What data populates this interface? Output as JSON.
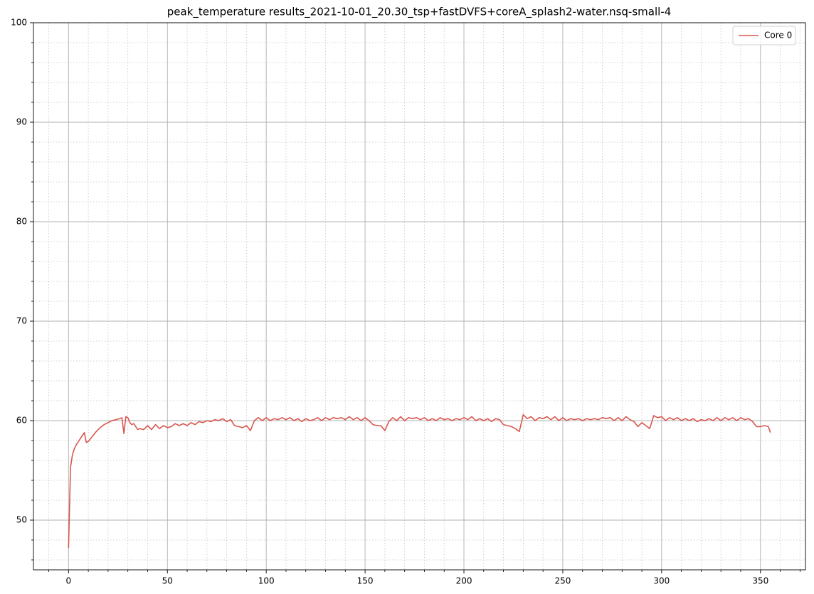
{
  "chart_data": {
    "type": "line",
    "title": "peak_temperature results_2021-10-01_20.30_tsp+fastDVFS+coreA_splash2-water.nsq-small-4",
    "x": [
      0,
      1,
      2,
      3,
      4,
      5,
      6,
      7,
      8,
      9,
      10,
      11,
      12,
      13,
      14,
      15,
      16,
      17,
      18,
      19,
      20,
      21,
      22,
      23,
      24,
      25,
      26,
      27,
      28,
      29,
      30,
      31,
      32,
      33,
      34,
      35,
      36,
      38,
      40,
      42,
      44,
      46,
      48,
      50,
      52,
      54,
      56,
      58,
      60,
      62,
      64,
      66,
      68,
      70,
      72,
      74,
      76,
      78,
      80,
      82,
      84,
      86,
      88,
      90,
      92,
      94,
      96,
      98,
      100,
      102,
      104,
      106,
      108,
      110,
      112,
      114,
      116,
      118,
      120,
      122,
      124,
      126,
      128,
      130,
      132,
      134,
      136,
      138,
      140,
      142,
      144,
      146,
      148,
      150,
      152,
      154,
      156,
      158,
      160,
      162,
      164,
      166,
      168,
      170,
      172,
      174,
      176,
      178,
      180,
      182,
      184,
      186,
      188,
      190,
      192,
      194,
      196,
      198,
      200,
      202,
      204,
      206,
      208,
      210,
      212,
      214,
      216,
      218,
      220,
      222,
      224,
      226,
      228,
      230,
      232,
      234,
      236,
      238,
      240,
      242,
      244,
      246,
      248,
      250,
      252,
      254,
      256,
      258,
      260,
      262,
      264,
      266,
      268,
      270,
      272,
      274,
      276,
      278,
      280,
      282,
      284,
      286,
      288,
      290,
      292,
      294,
      296,
      298,
      300,
      302,
      304,
      306,
      308,
      310,
      312,
      314,
      316,
      318,
      320,
      322,
      324,
      326,
      328,
      330,
      332,
      334,
      336,
      338,
      340,
      342,
      344,
      346,
      348,
      350,
      352,
      354,
      355
    ],
    "series": [
      {
        "name": "Core 0",
        "color": "#d9574f",
        "values": [
          47.2,
          55.3,
          56.6,
          57.2,
          57.6,
          57.9,
          58.2,
          58.5,
          58.8,
          57.8,
          57.9,
          58.15,
          58.4,
          58.65,
          58.9,
          59.1,
          59.3,
          59.45,
          59.6,
          59.7,
          59.8,
          59.9,
          60.0,
          60.05,
          60.1,
          60.15,
          60.2,
          60.3,
          58.7,
          60.4,
          60.3,
          59.8,
          59.6,
          59.7,
          59.4,
          59.1,
          59.2,
          59.1,
          59.5,
          59.1,
          59.6,
          59.2,
          59.5,
          59.3,
          59.4,
          59.7,
          59.5,
          59.7,
          59.5,
          59.8,
          59.6,
          59.9,
          59.8,
          60.0,
          59.9,
          60.1,
          60.0,
          60.2,
          59.9,
          60.1,
          59.5,
          59.4,
          59.3,
          59.5,
          59.0,
          60.0,
          60.3,
          60.0,
          60.3,
          60.0,
          60.2,
          60.1,
          60.3,
          60.1,
          60.3,
          60.0,
          60.2,
          59.9,
          60.2,
          60.0,
          60.1,
          60.3,
          60.0,
          60.3,
          60.1,
          60.3,
          60.2,
          60.3,
          60.1,
          60.4,
          60.1,
          60.3,
          60.0,
          60.3,
          60.0,
          59.6,
          59.5,
          59.5,
          59.0,
          59.9,
          60.3,
          60.0,
          60.4,
          60.0,
          60.3,
          60.2,
          60.3,
          60.1,
          60.3,
          60.0,
          60.2,
          60.0,
          60.3,
          60.1,
          60.2,
          60.0,
          60.2,
          60.1,
          60.3,
          60.1,
          60.4,
          60.0,
          60.2,
          60.0,
          60.2,
          59.9,
          60.2,
          60.1,
          59.6,
          59.5,
          59.4,
          59.2,
          58.9,
          60.6,
          60.2,
          60.4,
          60.0,
          60.3,
          60.2,
          60.4,
          60.1,
          60.4,
          60.0,
          60.3,
          60.0,
          60.2,
          60.1,
          60.2,
          60.0,
          60.2,
          60.1,
          60.2,
          60.1,
          60.3,
          60.2,
          60.3,
          60.0,
          60.3,
          60.0,
          60.4,
          60.1,
          59.9,
          59.4,
          59.8,
          59.5,
          59.2,
          60.5,
          60.3,
          60.4,
          60.0,
          60.3,
          60.1,
          60.3,
          60.0,
          60.2,
          60.0,
          60.2,
          59.9,
          60.1,
          60.0,
          60.2,
          60.0,
          60.3,
          60.0,
          60.3,
          60.1,
          60.3,
          60.0,
          60.3,
          60.1,
          60.2,
          59.9,
          59.4,
          59.4,
          59.5,
          59.4,
          58.8
        ]
      }
    ],
    "xlim": [
      -17.75,
      372.75
    ],
    "ylim": [
      45,
      100
    ],
    "xticks": [
      0,
      50,
      100,
      150,
      200,
      250,
      300,
      350
    ],
    "yticks": [
      50,
      60,
      70,
      80,
      90,
      100
    ],
    "xminor_ticks": [
      -10,
      10,
      20,
      30,
      40,
      60,
      70,
      80,
      90,
      110,
      120,
      130,
      140,
      160,
      170,
      180,
      190,
      210,
      220,
      230,
      240,
      260,
      270,
      280,
      290,
      310,
      320,
      330,
      340,
      360,
      370
    ],
    "yminor_ticks": [
      46,
      48,
      52,
      54,
      56,
      58,
      62,
      64,
      66,
      68,
      72,
      74,
      76,
      78,
      82,
      84,
      86,
      88,
      92,
      94,
      96,
      98
    ],
    "grid": true,
    "legend": "upper right"
  }
}
